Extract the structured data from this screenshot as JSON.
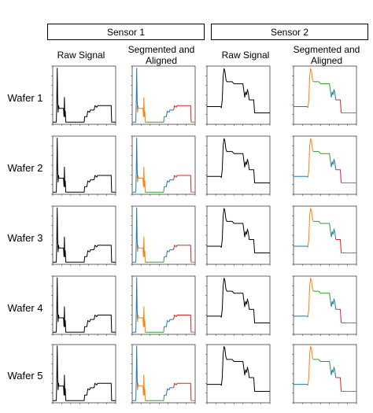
{
  "sensors": [
    "Sensor 1",
    "Sensor 2"
  ],
  "columns": [
    {
      "label": "Raw Signal",
      "lines": [
        "Raw Signal"
      ]
    },
    {
      "label": "Segmented and Aligned",
      "lines": [
        "Segmented and",
        "Aligned"
      ]
    },
    {
      "label": "Raw Signal",
      "lines": [
        "Raw Signal"
      ]
    },
    {
      "label": "Segmented and Aligned",
      "lines": [
        "Segmented and",
        "Aligned"
      ]
    }
  ],
  "rows": [
    "Wafer 1",
    "Wafer 2",
    "Wafer 3",
    "Wafer 4",
    "Wafer 5"
  ],
  "colors": {
    "raw": "#000000",
    "segments": [
      "#1f77b4",
      "#ff7f0e",
      "#2ca02c",
      "#1f77b4",
      "#d62728",
      "#7f7f7f"
    ]
  },
  "chart_data": [
    {
      "type": "line",
      "panel": "sensor1-raw",
      "xlim": [
        0,
        700
      ],
      "ylim": [
        -4,
        102
      ],
      "x": [
        0,
        40,
        45,
        50,
        55,
        60,
        65,
        70,
        120,
        125,
        130,
        135,
        140,
        145,
        350,
        355,
        380,
        390,
        410,
        420,
        460,
        470,
        490,
        500,
        520,
        650,
        655,
        700
      ],
      "y": [
        0,
        0,
        35,
        98,
        40,
        18,
        30,
        25,
        25,
        10,
        45,
        10,
        20,
        0,
        0,
        10,
        10,
        20,
        18,
        22,
        22,
        30,
        27,
        30,
        30,
        30,
        0,
        0
      ]
    },
    {
      "type": "line",
      "panel": "sensor1-segmented",
      "xlim": [
        0,
        700
      ],
      "ylim": [
        -4,
        102
      ],
      "series": [
        {
          "name": "",
          "x": [
            0,
            40,
            45,
            50,
            55,
            60
          ],
          "y": [
            0,
            0,
            35,
            98,
            40,
            18
          ]
        },
        {
          "name": "",
          "x": [
            60,
            65,
            70,
            120,
            125,
            130,
            135,
            140,
            145
          ],
          "y": [
            18,
            30,
            25,
            25,
            10,
            45,
            10,
            20,
            0
          ]
        },
        {
          "name": "",
          "x": [
            145,
            350,
            355
          ],
          "y": [
            0,
            0,
            10
          ]
        },
        {
          "name": "",
          "x": [
            355,
            380,
            390,
            410,
            420,
            460
          ],
          "y": [
            10,
            10,
            20,
            18,
            22,
            22
          ]
        },
        {
          "name": "",
          "x": [
            460,
            470,
            490,
            500,
            520,
            650,
            655
          ],
          "y": [
            22,
            30,
            27,
            30,
            30,
            30,
            0
          ]
        },
        {
          "name": "",
          "x": [
            655,
            700
          ],
          "y": [
            0,
            0
          ]
        }
      ]
    },
    {
      "type": "line",
      "panel": "sensor2-raw",
      "xlim": [
        0,
        700
      ],
      "ylim": [
        -12,
        100
      ],
      "x": [
        0,
        150,
        160,
        170,
        180,
        190,
        200,
        210,
        220,
        230,
        240,
        280,
        290,
        300,
        330,
        340,
        360,
        380,
        400,
        420,
        430,
        440,
        450,
        460,
        470,
        480,
        490,
        520,
        530,
        600,
        700
      ],
      "y": [
        22,
        22,
        20,
        35,
        80,
        95,
        90,
        75,
        70,
        70,
        70,
        70,
        68,
        66,
        66,
        66,
        66,
        66,
        66,
        40,
        50,
        45,
        55,
        48,
        35,
        35,
        35,
        35,
        10,
        10,
        10
      ]
    },
    {
      "type": "line",
      "panel": "sensor2-segmented",
      "xlim": [
        0,
        700
      ],
      "ylim": [
        -12,
        100
      ],
      "series": [
        {
          "name": "",
          "x": [
            0,
            150,
            160
          ],
          "y": [
            22,
            22,
            20
          ]
        },
        {
          "name": "",
          "x": [
            160,
            170,
            180,
            190,
            200,
            210,
            220
          ],
          "y": [
            20,
            35,
            80,
            95,
            90,
            75,
            70
          ]
        },
        {
          "name": "",
          "x": [
            220,
            230,
            240,
            280,
            290,
            300,
            330,
            340,
            360,
            380,
            400,
            420
          ],
          "y": [
            70,
            70,
            70,
            70,
            68,
            66,
            66,
            66,
            66,
            66,
            66,
            40
          ]
        },
        {
          "name": "",
          "x": [
            420,
            430,
            440,
            450,
            460,
            470
          ],
          "y": [
            40,
            50,
            45,
            55,
            48,
            35
          ]
        },
        {
          "name": "",
          "x": [
            470,
            480,
            490,
            520,
            530
          ],
          "y": [
            35,
            35,
            35,
            35,
            10
          ]
        },
        {
          "name": "",
          "x": [
            530,
            600,
            700
          ],
          "y": [
            10,
            10,
            10
          ]
        }
      ]
    }
  ]
}
